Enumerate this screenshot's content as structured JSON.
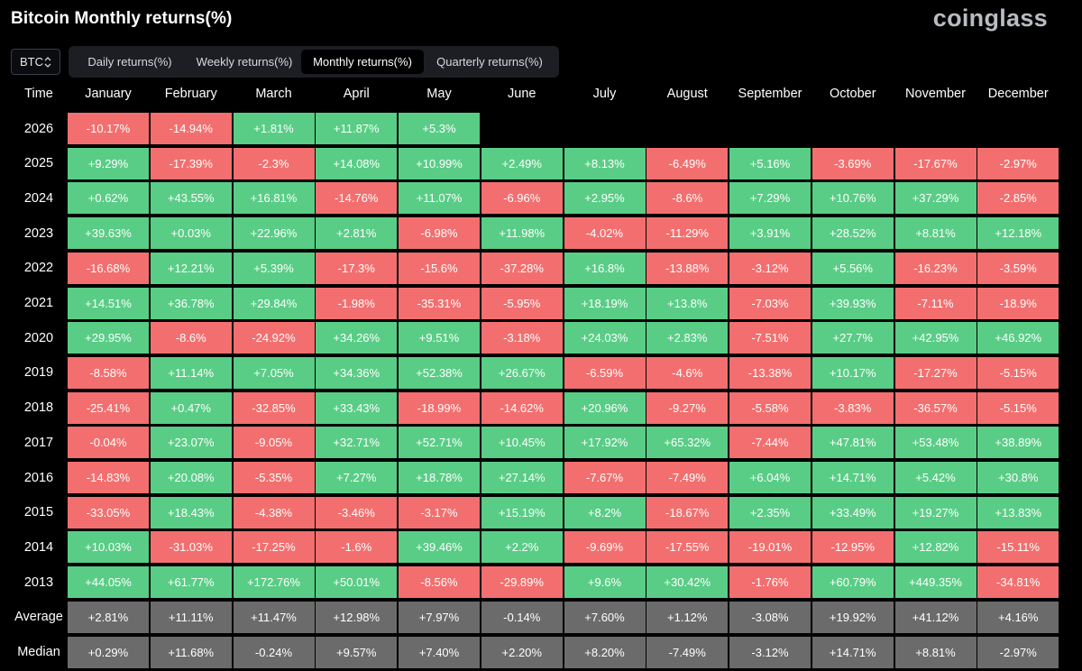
{
  "header": {
    "title": "Bitcoin Monthly returns(%)",
    "brand": "coinglass"
  },
  "asset_select": {
    "value": "BTC"
  },
  "tabs": [
    {
      "label": "Daily returns(%)",
      "active": false
    },
    {
      "label": "Weekly returns(%)",
      "active": false
    },
    {
      "label": "Monthly returns(%)",
      "active": true
    },
    {
      "label": "Quarterly returns(%)",
      "active": false
    }
  ],
  "colors": {
    "positive": "#59cd86",
    "negative": "#f36f6f",
    "stat": "#6b6b6b",
    "background": "#000000"
  },
  "table": {
    "time_header": "Time",
    "months": [
      "January",
      "February",
      "March",
      "April",
      "May",
      "June",
      "July",
      "August",
      "September",
      "October",
      "November",
      "December"
    ],
    "rows": [
      {
        "year": "2026",
        "values": [
          "-10.17%",
          "-14.94%",
          "+1.81%",
          "+11.87%",
          "+5.3%"
        ]
      },
      {
        "year": "2025",
        "values": [
          "+9.29%",
          "-17.39%",
          "-2.3%",
          "+14.08%",
          "+10.99%",
          "+2.49%",
          "+8.13%",
          "-6.49%",
          "+5.16%",
          "-3.69%",
          "-17.67%",
          "-2.97%"
        ]
      },
      {
        "year": "2024",
        "values": [
          "+0.62%",
          "+43.55%",
          "+16.81%",
          "-14.76%",
          "+11.07%",
          "-6.96%",
          "+2.95%",
          "-8.6%",
          "+7.29%",
          "+10.76%",
          "+37.29%",
          "-2.85%"
        ]
      },
      {
        "year": "2023",
        "values": [
          "+39.63%",
          "+0.03%",
          "+22.96%",
          "+2.81%",
          "-6.98%",
          "+11.98%",
          "-4.02%",
          "-11.29%",
          "+3.91%",
          "+28.52%",
          "+8.81%",
          "+12.18%"
        ]
      },
      {
        "year": "2022",
        "values": [
          "-16.68%",
          "+12.21%",
          "+5.39%",
          "-17.3%",
          "-15.6%",
          "-37.28%",
          "+16.8%",
          "-13.88%",
          "-3.12%",
          "+5.56%",
          "-16.23%",
          "-3.59%"
        ]
      },
      {
        "year": "2021",
        "values": [
          "+14.51%",
          "+36.78%",
          "+29.84%",
          "-1.98%",
          "-35.31%",
          "-5.95%",
          "+18.19%",
          "+13.8%",
          "-7.03%",
          "+39.93%",
          "-7.11%",
          "-18.9%"
        ]
      },
      {
        "year": "2020",
        "values": [
          "+29.95%",
          "-8.6%",
          "-24.92%",
          "+34.26%",
          "+9.51%",
          "-3.18%",
          "+24.03%",
          "+2.83%",
          "-7.51%",
          "+27.7%",
          "+42.95%",
          "+46.92%"
        ]
      },
      {
        "year": "2019",
        "values": [
          "-8.58%",
          "+11.14%",
          "+7.05%",
          "+34.36%",
          "+52.38%",
          "+26.67%",
          "-6.59%",
          "-4.6%",
          "-13.38%",
          "+10.17%",
          "-17.27%",
          "-5.15%"
        ]
      },
      {
        "year": "2018",
        "values": [
          "-25.41%",
          "+0.47%",
          "-32.85%",
          "+33.43%",
          "-18.99%",
          "-14.62%",
          "+20.96%",
          "-9.27%",
          "-5.58%",
          "-3.83%",
          "-36.57%",
          "-5.15%"
        ]
      },
      {
        "year": "2017",
        "values": [
          "-0.04%",
          "+23.07%",
          "-9.05%",
          "+32.71%",
          "+52.71%",
          "+10.45%",
          "+17.92%",
          "+65.32%",
          "-7.44%",
          "+47.81%",
          "+53.48%",
          "+38.89%"
        ]
      },
      {
        "year": "2016",
        "values": [
          "-14.83%",
          "+20.08%",
          "-5.35%",
          "+7.27%",
          "+18.78%",
          "+27.14%",
          "-7.67%",
          "-7.49%",
          "+6.04%",
          "+14.71%",
          "+5.42%",
          "+30.8%"
        ]
      },
      {
        "year": "2015",
        "values": [
          "-33.05%",
          "+18.43%",
          "-4.38%",
          "-3.46%",
          "-3.17%",
          "+15.19%",
          "+8.2%",
          "-18.67%",
          "+2.35%",
          "+33.49%",
          "+19.27%",
          "+13.83%"
        ]
      },
      {
        "year": "2014",
        "values": [
          "+10.03%",
          "-31.03%",
          "-17.25%",
          "-1.6%",
          "+39.46%",
          "+2.2%",
          "-9.69%",
          "-17.55%",
          "-19.01%",
          "-12.95%",
          "+12.82%",
          "-15.11%"
        ]
      },
      {
        "year": "2013",
        "values": [
          "+44.05%",
          "+61.77%",
          "+172.76%",
          "+50.01%",
          "-8.56%",
          "-29.89%",
          "+9.6%",
          "+30.42%",
          "-1.76%",
          "+60.79%",
          "+449.35%",
          "-34.81%"
        ]
      }
    ],
    "stats": [
      {
        "label": "Average",
        "values": [
          "+2.81%",
          "+11.11%",
          "+11.47%",
          "+12.98%",
          "+7.97%",
          "-0.14%",
          "+7.60%",
          "+1.12%",
          "-3.08%",
          "+19.92%",
          "+41.12%",
          "+4.16%"
        ]
      },
      {
        "label": "Median",
        "values": [
          "+0.29%",
          "+11.68%",
          "-0.24%",
          "+9.57%",
          "+7.40%",
          "+2.20%",
          "+8.20%",
          "-7.49%",
          "-3.12%",
          "+14.71%",
          "+8.81%",
          "-2.97%"
        ]
      }
    ]
  }
}
